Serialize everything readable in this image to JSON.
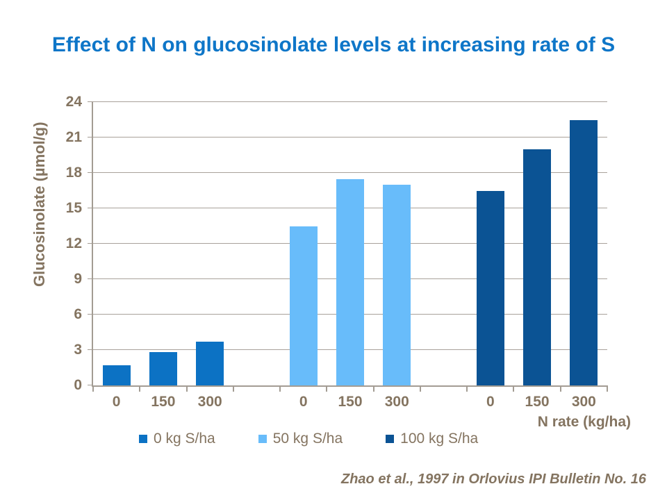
{
  "citation": "Zhao et al., 1997 in Orlovius IPI Bulletin No. 16",
  "colors": {
    "title": "#0E76C8",
    "axis": "#A39C93",
    "gridline": "#A8A19A",
    "label_text": "#847460"
  },
  "chart_data": {
    "type": "bar",
    "title": "Effect of N on glucosinolate levels at increasing rate of S",
    "xlabel": "N rate (kg/ha)",
    "ylabel": "Glucosinolate (µmol/g)",
    "ylim": [
      0,
      24
    ],
    "yticks": [
      0,
      3,
      6,
      9,
      12,
      15,
      18,
      21,
      24
    ],
    "grid": true,
    "legend_position": "bottom",
    "categories": [
      "0",
      "150",
      "300"
    ],
    "series": [
      {
        "name": "0 kg S/ha",
        "color": "#0C72C4",
        "values": [
          1.7,
          2.8,
          3.7
        ]
      },
      {
        "name": "50 kg S/ha",
        "color": "#68BCFA",
        "values": [
          13.5,
          17.5,
          17.0
        ]
      },
      {
        "name": "100 kg S/ha",
        "color": "#0B5394",
        "values": [
          16.5,
          20.0,
          22.5
        ]
      }
    ]
  }
}
